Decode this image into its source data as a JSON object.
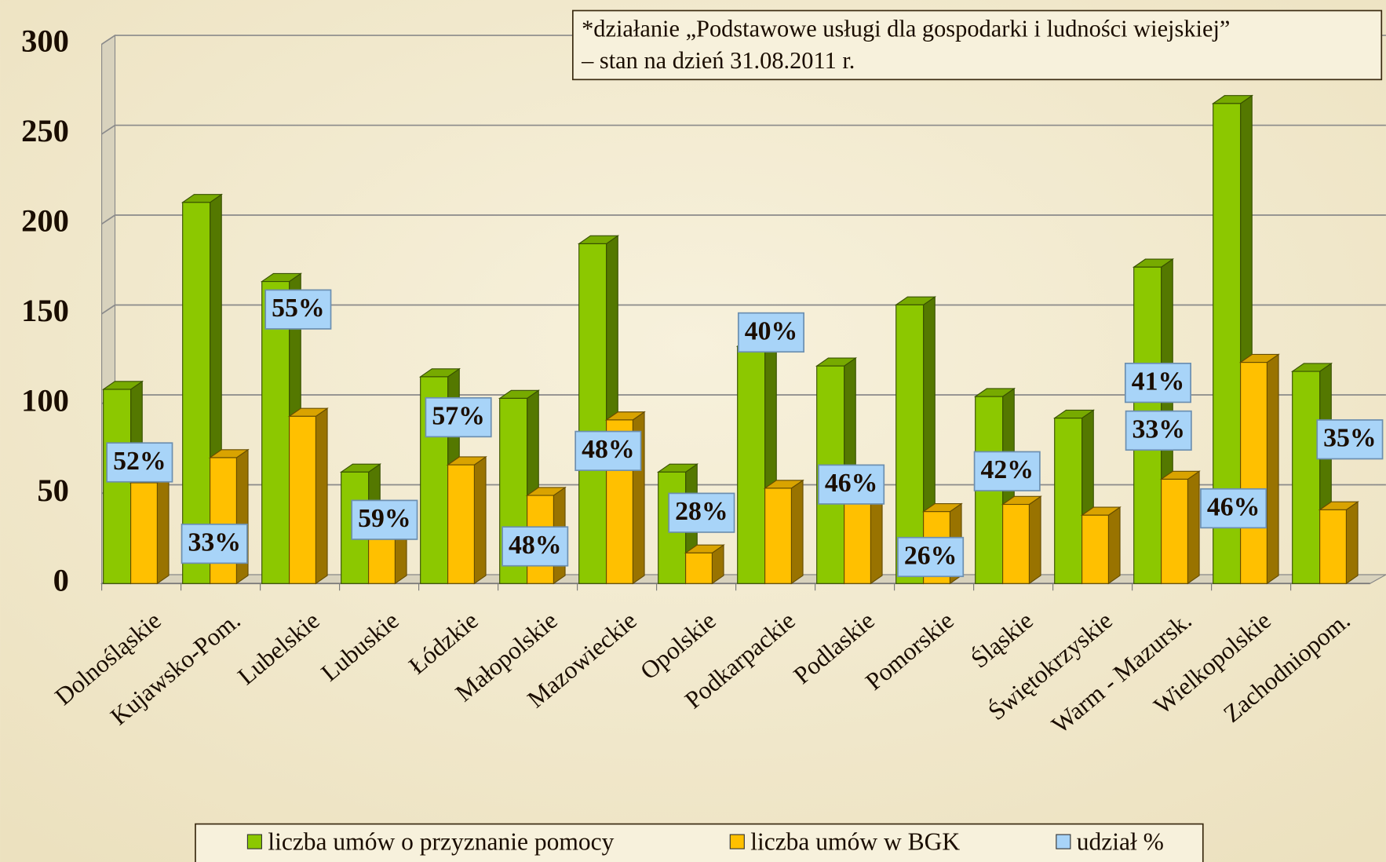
{
  "chart_data": {
    "type": "bar3d",
    "annotation": [
      "*działanie „Podstawowe usługi dla gospodarki i ludności wiejskiej”",
      "– stan na dzień 31.08.2011 r."
    ],
    "categories": [
      "Dolnośląskie",
      "Kujawsko-Pom.",
      "Lubelskie",
      "Lubuskie",
      "Łódzkie",
      "Małopolskie",
      "Mazowieckie",
      "Opolskie",
      "Podkarpackie",
      "Podlaskie",
      "Pomorskie",
      "Śląskie",
      "Świętokrzyskie",
      "Warm - Mazursk.",
      "Wielkopolskie",
      "Zachodniopom."
    ],
    "series": [
      {
        "name": "liczba umów o przyznanie pomocy",
        "color": "#8cc800",
        "values": [
          108,
          212,
          168,
          62,
          115,
          103,
          189,
          62,
          132,
          121,
          155,
          104,
          92,
          176,
          267,
          118
        ]
      },
      {
        "name": "liczba umów w BGK",
        "color": "#ffc000",
        "values": [
          56,
          70,
          93,
          37,
          66,
          49,
          91,
          17,
          53,
          56,
          40,
          44,
          38,
          58,
          123,
          41
        ]
      },
      {
        "name": "udział %",
        "color": "#a8d4f8",
        "values": [
          52,
          33,
          55,
          59,
          57,
          48,
          48,
          28,
          40,
          46,
          26,
          42,
          41,
          33,
          46,
          35
        ],
        "value_labels": [
          "52%",
          "33%",
          "55%",
          "59%",
          "57%",
          "48%",
          "48%",
          "28%",
          "40%",
          "46%",
          "26%",
          "42%",
          "41%",
          "33%",
          "46%",
          "35%"
        ]
      }
    ],
    "ylim": [
      0,
      300
    ],
    "yticks": [
      0,
      50,
      100,
      150,
      200,
      250,
      300
    ],
    "grid": true,
    "legend": "bottom"
  }
}
